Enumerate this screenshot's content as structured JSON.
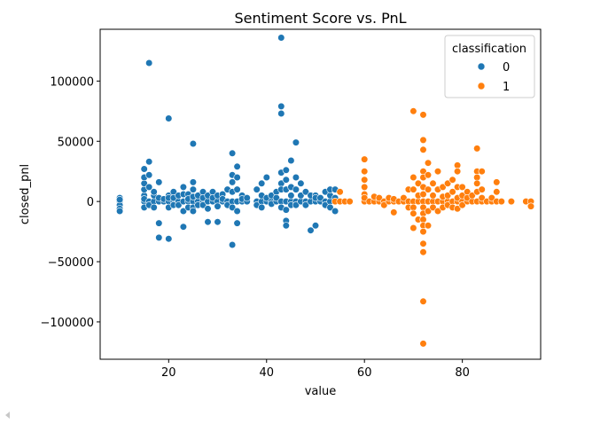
{
  "chart_data": {
    "type": "scatter",
    "title": "Sentiment Score vs. PnL",
    "xlabel": "value",
    "ylabel": "closed_pnl",
    "xlim": [
      6,
      96
    ],
    "ylim": [
      -131000,
      143000
    ],
    "xticks": [
      20,
      40,
      60,
      80
    ],
    "yticks": [
      -100000,
      -50000,
      0,
      50000,
      100000
    ],
    "xtick_labels": [
      "20",
      "40",
      "60",
      "80"
    ],
    "ytick_labels": [
      "−100000",
      "−50000",
      "0",
      "50000",
      "100000"
    ],
    "grid": false,
    "legend": {
      "title": "classification",
      "position": "top-right"
    },
    "colors": {
      "0": "#1f77b4",
      "1": "#ff7f0e"
    },
    "series": [
      {
        "name": "0",
        "color": "#1f77b4",
        "points": [
          [
            10,
            0
          ],
          [
            10,
            3000
          ],
          [
            10,
            -3000
          ],
          [
            10,
            -6000
          ],
          [
            10,
            -8000
          ],
          [
            10,
            1500
          ],
          [
            15,
            0
          ],
          [
            15,
            5000
          ],
          [
            15,
            10000
          ],
          [
            15,
            15000
          ],
          [
            15,
            20000
          ],
          [
            15,
            27000
          ],
          [
            15,
            -5000
          ],
          [
            15,
            2000
          ],
          [
            16,
            0
          ],
          [
            16,
            115000
          ],
          [
            16,
            33000
          ],
          [
            16,
            22000
          ],
          [
            16,
            12000
          ],
          [
            16,
            -3000
          ],
          [
            17,
            0
          ],
          [
            17,
            5000
          ],
          [
            17,
            -5000
          ],
          [
            17,
            8000
          ],
          [
            18,
            0
          ],
          [
            18,
            -18000
          ],
          [
            18,
            -30000
          ],
          [
            18,
            16000
          ],
          [
            18,
            3000
          ],
          [
            19,
            0
          ],
          [
            19,
            2000
          ],
          [
            20,
            69000
          ],
          [
            20,
            0
          ],
          [
            20,
            -5000
          ],
          [
            20,
            -31000
          ],
          [
            20,
            5000
          ],
          [
            20,
            3000
          ],
          [
            21,
            0
          ],
          [
            21,
            8000
          ],
          [
            21,
            3000
          ],
          [
            21,
            -3000
          ],
          [
            22,
            0
          ],
          [
            22,
            5000
          ],
          [
            22,
            -3000
          ],
          [
            23,
            0
          ],
          [
            23,
            -21000
          ],
          [
            23,
            12000
          ],
          [
            23,
            6000
          ],
          [
            23,
            -8000
          ],
          [
            24,
            0
          ],
          [
            24,
            6000
          ],
          [
            24,
            -5000
          ],
          [
            24,
            2000
          ],
          [
            25,
            48000
          ],
          [
            25,
            16000
          ],
          [
            25,
            10000
          ],
          [
            25,
            0
          ],
          [
            25,
            -5000
          ],
          [
            25,
            -8000
          ],
          [
            25,
            4000
          ],
          [
            26,
            0
          ],
          [
            26,
            5000
          ],
          [
            26,
            -3000
          ],
          [
            27,
            0
          ],
          [
            27,
            8000
          ],
          [
            27,
            -3000
          ],
          [
            27,
            3000
          ],
          [
            28,
            0
          ],
          [
            28,
            -17000
          ],
          [
            28,
            -6000
          ],
          [
            28,
            5000
          ],
          [
            29,
            0
          ],
          [
            29,
            8000
          ],
          [
            29,
            3000
          ],
          [
            30,
            0
          ],
          [
            30,
            -17000
          ],
          [
            30,
            5000
          ],
          [
            30,
            -4000
          ],
          [
            31,
            0
          ],
          [
            31,
            6000
          ],
          [
            31,
            2000
          ],
          [
            32,
            0
          ],
          [
            32,
            10000
          ],
          [
            32,
            -3000
          ],
          [
            33,
            40000
          ],
          [
            33,
            22000
          ],
          [
            33,
            16000
          ],
          [
            33,
            8000
          ],
          [
            33,
            0
          ],
          [
            33,
            -5000
          ],
          [
            33,
            -36000
          ],
          [
            34,
            29000
          ],
          [
            34,
            20000
          ],
          [
            34,
            10000
          ],
          [
            34,
            0
          ],
          [
            34,
            -8000
          ],
          [
            34,
            -18000
          ],
          [
            35,
            0
          ],
          [
            35,
            5000
          ],
          [
            35,
            2000
          ],
          [
            36,
            0
          ],
          [
            36,
            3000
          ],
          [
            38,
            0
          ],
          [
            38,
            10000
          ],
          [
            38,
            -3000
          ],
          [
            39,
            0
          ],
          [
            39,
            15000
          ],
          [
            39,
            5000
          ],
          [
            39,
            -5000
          ],
          [
            40,
            0
          ],
          [
            40,
            20000
          ],
          [
            40,
            3000
          ],
          [
            41,
            0
          ],
          [
            41,
            5000
          ],
          [
            41,
            -2000
          ],
          [
            42,
            0
          ],
          [
            42,
            8000
          ],
          [
            42,
            3000
          ],
          [
            43,
            136000
          ],
          [
            43,
            79000
          ],
          [
            43,
            73000
          ],
          [
            43,
            24000
          ],
          [
            43,
            15000
          ],
          [
            43,
            10000
          ],
          [
            43,
            0
          ],
          [
            43,
            -5000
          ],
          [
            44,
            0
          ],
          [
            44,
            26000
          ],
          [
            44,
            18000
          ],
          [
            44,
            10000
          ],
          [
            44,
            -7000
          ],
          [
            44,
            -16000
          ],
          [
            44,
            -20000
          ],
          [
            45,
            0
          ],
          [
            45,
            34000
          ],
          [
            45,
            12000
          ],
          [
            45,
            5000
          ],
          [
            45,
            -3000
          ],
          [
            46,
            0
          ],
          [
            46,
            49000
          ],
          [
            46,
            20000
          ],
          [
            46,
            10000
          ],
          [
            46,
            -3000
          ],
          [
            47,
            0
          ],
          [
            47,
            15000
          ],
          [
            47,
            5000
          ],
          [
            48,
            0
          ],
          [
            48,
            8000
          ],
          [
            48,
            -3000
          ],
          [
            49,
            0
          ],
          [
            49,
            -24000
          ],
          [
            49,
            5000
          ],
          [
            50,
            0
          ],
          [
            50,
            -20000
          ],
          [
            50,
            5000
          ],
          [
            50,
            3000
          ],
          [
            51,
            0
          ],
          [
            51,
            3000
          ],
          [
            52,
            0
          ],
          [
            52,
            8000
          ],
          [
            52,
            -3000
          ],
          [
            53,
            0
          ],
          [
            53,
            5000
          ],
          [
            53,
            -5000
          ],
          [
            53,
            10000
          ],
          [
            54,
            0
          ],
          [
            54,
            10000
          ],
          [
            54,
            -8000
          ],
          [
            54,
            3000
          ]
        ]
      },
      {
        "name": "1",
        "color": "#ff7f0e",
        "points": [
          [
            54,
            0
          ],
          [
            55,
            0
          ],
          [
            55,
            8000
          ],
          [
            56,
            0
          ],
          [
            57,
            0
          ],
          [
            60,
            0
          ],
          [
            60,
            35000
          ],
          [
            60,
            25000
          ],
          [
            60,
            18000
          ],
          [
            60,
            12000
          ],
          [
            60,
            6000
          ],
          [
            60,
            3000
          ],
          [
            61,
            0
          ],
          [
            62,
            0
          ],
          [
            62,
            4000
          ],
          [
            63,
            0
          ],
          [
            63,
            3000
          ],
          [
            64,
            0
          ],
          [
            64,
            -3000
          ],
          [
            65,
            0
          ],
          [
            65,
            3000
          ],
          [
            66,
            0
          ],
          [
            66,
            -9000
          ],
          [
            66,
            2000
          ],
          [
            67,
            0
          ],
          [
            68,
            0
          ],
          [
            68,
            3000
          ],
          [
            69,
            0
          ],
          [
            69,
            10000
          ],
          [
            69,
            -5000
          ],
          [
            70,
            75000
          ],
          [
            70,
            20000
          ],
          [
            70,
            10000
          ],
          [
            70,
            0
          ],
          [
            70,
            -5000
          ],
          [
            70,
            -10000
          ],
          [
            70,
            -22000
          ],
          [
            71,
            0
          ],
          [
            71,
            15000
          ],
          [
            71,
            5000
          ],
          [
            71,
            -15000
          ],
          [
            72,
            72000
          ],
          [
            72,
            51000
          ],
          [
            72,
            43000
          ],
          [
            72,
            25000
          ],
          [
            72,
            20000
          ],
          [
            72,
            12000
          ],
          [
            72,
            6000
          ],
          [
            72,
            0
          ],
          [
            72,
            -5000
          ],
          [
            72,
            -10000
          ],
          [
            72,
            -15000
          ],
          [
            72,
            -20000
          ],
          [
            72,
            -25000
          ],
          [
            72,
            -35000
          ],
          [
            72,
            -42000
          ],
          [
            72,
            -83000
          ],
          [
            72,
            -118000
          ],
          [
            73,
            32000
          ],
          [
            73,
            22000
          ],
          [
            73,
            10000
          ],
          [
            73,
            0
          ],
          [
            73,
            -8000
          ],
          [
            73,
            -20000
          ],
          [
            74,
            0
          ],
          [
            74,
            15000
          ],
          [
            74,
            5000
          ],
          [
            74,
            -5000
          ],
          [
            75,
            0
          ],
          [
            75,
            25000
          ],
          [
            75,
            10000
          ],
          [
            75,
            -8000
          ],
          [
            76,
            0
          ],
          [
            76,
            12000
          ],
          [
            76,
            4000
          ],
          [
            76,
            -5000
          ],
          [
            77,
            0
          ],
          [
            77,
            15000
          ],
          [
            77,
            5000
          ],
          [
            77,
            -3000
          ],
          [
            78,
            0
          ],
          [
            78,
            18000
          ],
          [
            78,
            8000
          ],
          [
            78,
            -5000
          ],
          [
            79,
            0
          ],
          [
            79,
            30000
          ],
          [
            79,
            25000
          ],
          [
            79,
            12000
          ],
          [
            79,
            3000
          ],
          [
            79,
            -6000
          ],
          [
            80,
            0
          ],
          [
            80,
            12000
          ],
          [
            80,
            5000
          ],
          [
            80,
            -3000
          ],
          [
            81,
            0
          ],
          [
            81,
            8000
          ],
          [
            81,
            3000
          ],
          [
            82,
            0
          ],
          [
            82,
            5000
          ],
          [
            83,
            44000
          ],
          [
            83,
            25000
          ],
          [
            83,
            20000
          ],
          [
            83,
            15000
          ],
          [
            83,
            8000
          ],
          [
            83,
            0
          ],
          [
            84,
            0
          ],
          [
            84,
            25000
          ],
          [
            84,
            10000
          ],
          [
            84,
            3000
          ],
          [
            85,
            0
          ],
          [
            86,
            0
          ],
          [
            86,
            3000
          ],
          [
            87,
            0
          ],
          [
            87,
            16000
          ],
          [
            87,
            8000
          ],
          [
            88,
            0
          ],
          [
            90,
            0
          ],
          [
            93,
            0
          ],
          [
            94,
            0
          ],
          [
            94,
            -4000
          ]
        ]
      }
    ]
  }
}
